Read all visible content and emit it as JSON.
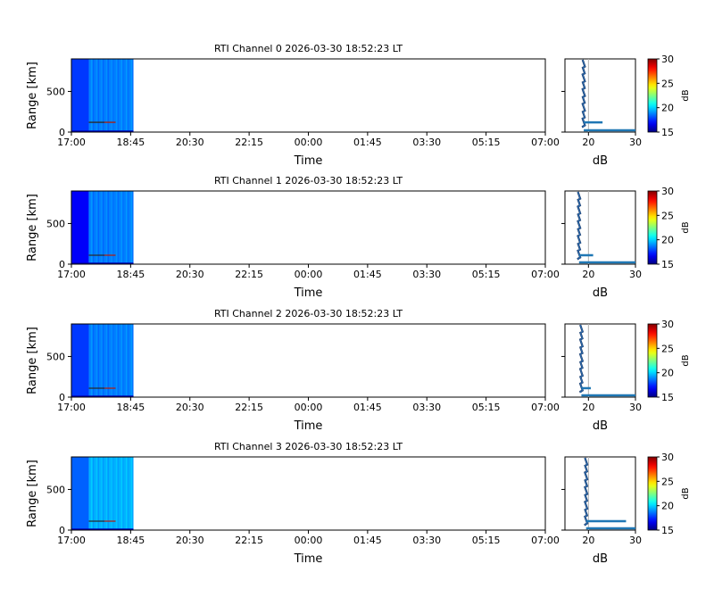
{
  "figure": {
    "panels": [
      {
        "title": "RTI Channel 0 2026-03-30 18:52:23 LT"
      },
      {
        "title": "RTI Channel 1 2026-03-30 18:52:23 LT"
      },
      {
        "title": "RTI Channel 2 2026-03-30 18:52:23 LT"
      },
      {
        "title": "RTI Channel 3 2026-03-30 18:52:23 LT"
      }
    ],
    "rti_xlabel": "Time",
    "rti_ylabel": "Range [km]",
    "profile_xlabel": "dB",
    "colorbar_label": "dB"
  },
  "chart_data": [
    {
      "type": "heatmap",
      "title": "RTI Channel 0 2026-03-30 18:52:23 LT",
      "xlabel": "Time",
      "ylabel": "Range [km]",
      "x_ticks": [
        "17:00",
        "18:45",
        "20:30",
        "22:15",
        "00:00",
        "01:45",
        "03:30",
        "05:15",
        "07:00"
      ],
      "y_ticks": [
        0,
        500
      ],
      "ylim": [
        0,
        900
      ],
      "data_time_span": [
        "17:00",
        "18:50"
      ],
      "echo_range_km": 120,
      "colorbar": {
        "label": "dB",
        "ticks": [
          15,
          20,
          25,
          30
        ],
        "range": [
          15,
          30
        ],
        "colormap": "jet"
      },
      "profile": {
        "xlabel": "dB",
        "x_ticks": [
          20,
          30
        ],
        "xlim": [
          15,
          30
        ],
        "baseline_db": 19,
        "peak_db": 23,
        "peak_range_km": 120,
        "surface_db": 30
      }
    },
    {
      "type": "heatmap",
      "title": "RTI Channel 1 2026-03-30 18:52:23 LT",
      "xlabel": "Time",
      "ylabel": "Range [km]",
      "x_ticks": [
        "17:00",
        "18:45",
        "20:30",
        "22:15",
        "00:00",
        "01:45",
        "03:30",
        "05:15",
        "07:00"
      ],
      "y_ticks": [
        0,
        500
      ],
      "ylim": [
        0,
        900
      ],
      "data_time_span": [
        "17:00",
        "18:50"
      ],
      "echo_range_km": 110,
      "colorbar": {
        "label": "dB",
        "ticks": [
          15,
          20,
          25,
          30
        ],
        "range": [
          15,
          30
        ],
        "colormap": "jet"
      },
      "profile": {
        "xlabel": "dB",
        "x_ticks": [
          20,
          30
        ],
        "xlim": [
          15,
          30
        ],
        "baseline_db": 18,
        "peak_db": 21,
        "peak_range_km": 110,
        "surface_db": 30
      }
    },
    {
      "type": "heatmap",
      "title": "RTI Channel 2 2026-03-30 18:52:23 LT",
      "xlabel": "Time",
      "ylabel": "Range [km]",
      "x_ticks": [
        "17:00",
        "18:45",
        "20:30",
        "22:15",
        "00:00",
        "01:45",
        "03:30",
        "05:15",
        "07:00"
      ],
      "y_ticks": [
        0,
        500
      ],
      "ylim": [
        0,
        900
      ],
      "data_time_span": [
        "17:00",
        "18:50"
      ],
      "echo_range_km": 110,
      "colorbar": {
        "label": "dB",
        "ticks": [
          15,
          20,
          25,
          30
        ],
        "range": [
          15,
          30
        ],
        "colormap": "jet"
      },
      "profile": {
        "xlabel": "dB",
        "x_ticks": [
          20,
          30
        ],
        "xlim": [
          15,
          30
        ],
        "baseline_db": 18.5,
        "peak_db": 20.5,
        "peak_range_km": 110,
        "surface_db": 30
      }
    },
    {
      "type": "heatmap",
      "title": "RTI Channel 3 2026-03-30 18:52:23 LT",
      "xlabel": "Time",
      "ylabel": "Range [km]",
      "x_ticks": [
        "17:00",
        "18:45",
        "20:30",
        "22:15",
        "00:00",
        "01:45",
        "03:30",
        "05:15",
        "07:00"
      ],
      "y_ticks": [
        0,
        500
      ],
      "ylim": [
        0,
        900
      ],
      "data_time_span": [
        "17:00",
        "18:50"
      ],
      "echo_range_km": 110,
      "colorbar": {
        "label": "dB",
        "ticks": [
          15,
          20,
          25,
          30
        ],
        "range": [
          15,
          30
        ],
        "colormap": "jet"
      },
      "profile": {
        "xlabel": "dB",
        "x_ticks": [
          20,
          30
        ],
        "xlim": [
          15,
          30
        ],
        "baseline_db": 19.5,
        "peak_db": 28,
        "peak_range_km": 110,
        "surface_db": 30
      }
    }
  ]
}
